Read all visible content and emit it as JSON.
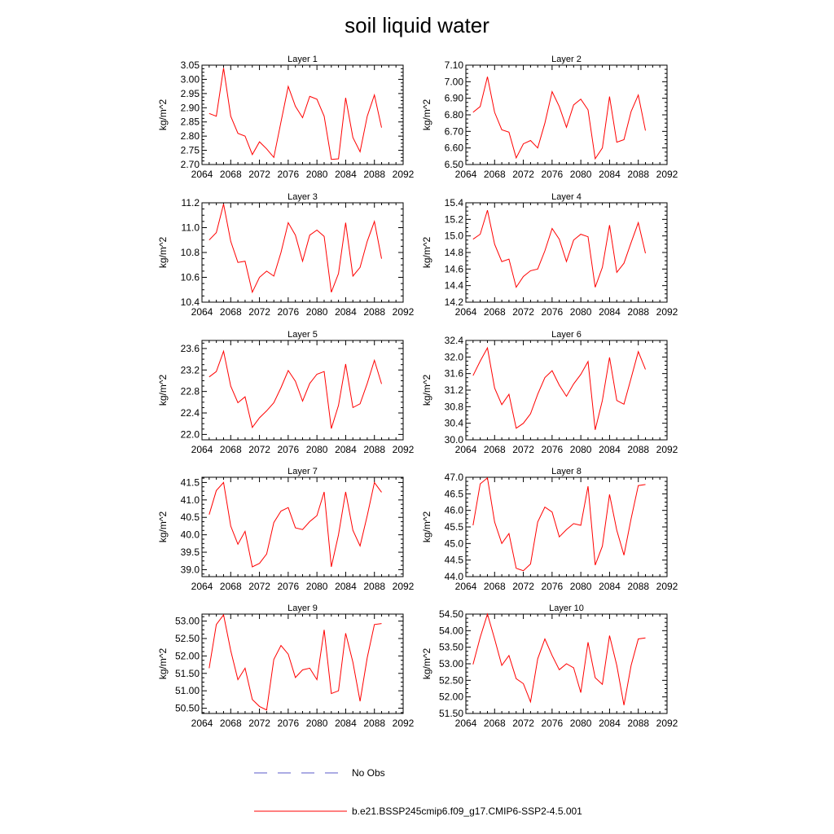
{
  "title": "soil liquid water",
  "legend": {
    "obs_label": "No Obs",
    "model_label": "b.e21.BSSP245cmip6.f09_g17.CMIP6-SSP2-4.5.001"
  },
  "colors": {
    "model": "#ff0000",
    "obs": "#5a5ac8",
    "axis": "#000000"
  },
  "chart_data": [
    {
      "type": "line",
      "title": "Layer 1",
      "ylabel": "kg/m^2",
      "xlim": [
        2064,
        2092
      ],
      "ylim": [
        2.7,
        3.05
      ],
      "xticks": [
        2064,
        2068,
        2072,
        2076,
        2080,
        2084,
        2088,
        2092
      ],
      "yticks": [
        2.7,
        2.75,
        2.8,
        2.85,
        2.9,
        2.95,
        3.0,
        3.05
      ],
      "ydec": 2,
      "x": [
        2065,
        2066,
        2067,
        2068,
        2069,
        2070,
        2071,
        2072,
        2073,
        2074,
        2075,
        2076,
        2077,
        2078,
        2079,
        2080,
        2081,
        2082,
        2083,
        2084,
        2085,
        2086,
        2087,
        2088,
        2089
      ],
      "y": [
        2.88,
        2.87,
        3.04,
        2.87,
        2.81,
        2.8,
        2.735,
        2.78,
        2.755,
        2.725,
        2.85,
        2.975,
        2.905,
        2.865,
        2.94,
        2.93,
        2.87,
        2.718,
        2.72,
        2.935,
        2.795,
        2.745,
        2.87,
        2.945,
        2.83
      ]
    },
    {
      "type": "line",
      "title": "Layer 2",
      "ylabel": "kg/m^2",
      "xlim": [
        2064,
        2092
      ],
      "ylim": [
        6.5,
        7.1
      ],
      "xticks": [
        2064,
        2068,
        2072,
        2076,
        2080,
        2084,
        2088,
        2092
      ],
      "yticks": [
        6.5,
        6.6,
        6.7,
        6.8,
        6.9,
        7.0,
        7.1
      ],
      "ydec": 2,
      "x": [
        2065,
        2066,
        2067,
        2068,
        2069,
        2070,
        2071,
        2072,
        2073,
        2074,
        2075,
        2076,
        2077,
        2078,
        2079,
        2080,
        2081,
        2082,
        2083,
        2084,
        2085,
        2086,
        2087,
        2088,
        2089
      ],
      "y": [
        6.815,
        6.85,
        7.03,
        6.815,
        6.71,
        6.695,
        6.54,
        6.625,
        6.645,
        6.6,
        6.75,
        6.94,
        6.85,
        6.725,
        6.86,
        6.895,
        6.83,
        6.535,
        6.6,
        6.91,
        6.635,
        6.65,
        6.82,
        6.92,
        6.705
      ]
    },
    {
      "type": "line",
      "title": "Layer 3",
      "ylabel": "kg/m^2",
      "xlim": [
        2064,
        2092
      ],
      "ylim": [
        10.4,
        11.2
      ],
      "xticks": [
        2064,
        2068,
        2072,
        2076,
        2080,
        2084,
        2088,
        2092
      ],
      "yticks": [
        10.4,
        10.6,
        10.8,
        11.0,
        11.2
      ],
      "ydec": 1,
      "x": [
        2065,
        2066,
        2067,
        2068,
        2069,
        2070,
        2071,
        2072,
        2073,
        2074,
        2075,
        2076,
        2077,
        2078,
        2079,
        2080,
        2081,
        2082,
        2083,
        2084,
        2085,
        2086,
        2087,
        2088,
        2089
      ],
      "y": [
        10.9,
        10.96,
        11.19,
        10.89,
        10.72,
        10.73,
        10.48,
        10.6,
        10.65,
        10.61,
        10.8,
        11.04,
        10.94,
        10.73,
        10.94,
        10.98,
        10.93,
        10.48,
        10.63,
        11.04,
        10.61,
        10.68,
        10.89,
        11.05,
        10.75
      ]
    },
    {
      "type": "line",
      "title": "Layer 4",
      "ylabel": "kg/m^2",
      "xlim": [
        2064,
        2092
      ],
      "ylim": [
        14.2,
        15.4
      ],
      "xticks": [
        2064,
        2068,
        2072,
        2076,
        2080,
        2084,
        2088,
        2092
      ],
      "yticks": [
        14.2,
        14.4,
        14.6,
        14.8,
        15.0,
        15.2,
        15.4
      ],
      "ydec": 1,
      "x": [
        2065,
        2066,
        2067,
        2068,
        2069,
        2070,
        2071,
        2072,
        2073,
        2074,
        2075,
        2076,
        2077,
        2078,
        2079,
        2080,
        2081,
        2082,
        2083,
        2084,
        2085,
        2086,
        2087,
        2088,
        2089
      ],
      "y": [
        14.96,
        15.02,
        15.31,
        14.9,
        14.69,
        14.72,
        14.38,
        14.51,
        14.58,
        14.6,
        14.82,
        15.09,
        14.96,
        14.69,
        14.95,
        15.02,
        14.99,
        14.38,
        14.62,
        15.13,
        14.56,
        14.67,
        14.92,
        15.16,
        14.79
      ]
    },
    {
      "type": "line",
      "title": "Layer 5",
      "ylabel": "kg/m^2",
      "xlim": [
        2064,
        2092
      ],
      "ylim": [
        21.9,
        23.75
      ],
      "xticks": [
        2064,
        2068,
        2072,
        2076,
        2080,
        2084,
        2088,
        2092
      ],
      "yticks": [
        22.0,
        22.4,
        22.8,
        23.2,
        23.6
      ],
      "ydec": 1,
      "x": [
        2065,
        2066,
        2067,
        2068,
        2069,
        2070,
        2071,
        2072,
        2073,
        2074,
        2075,
        2076,
        2077,
        2078,
        2079,
        2080,
        2081,
        2082,
        2083,
        2084,
        2085,
        2086,
        2087,
        2088,
        2089
      ],
      "y": [
        23.07,
        23.17,
        23.55,
        22.9,
        22.59,
        22.7,
        22.13,
        22.31,
        22.44,
        22.59,
        22.87,
        23.19,
        22.99,
        22.62,
        22.95,
        23.12,
        23.17,
        22.11,
        22.54,
        23.31,
        22.5,
        22.57,
        22.95,
        23.38,
        22.94
      ]
    },
    {
      "type": "line",
      "title": "Layer 6",
      "ylabel": "kg/m^2",
      "xlim": [
        2064,
        2092
      ],
      "ylim": [
        30.0,
        32.4
      ],
      "xticks": [
        2064,
        2068,
        2072,
        2076,
        2080,
        2084,
        2088,
        2092
      ],
      "yticks": [
        30.0,
        30.4,
        30.8,
        31.2,
        31.6,
        32.0,
        32.4
      ],
      "ydec": 1,
      "x": [
        2065,
        2066,
        2067,
        2068,
        2069,
        2070,
        2071,
        2072,
        2073,
        2074,
        2075,
        2076,
        2077,
        2078,
        2079,
        2080,
        2081,
        2082,
        2083,
        2084,
        2085,
        2086,
        2087,
        2088,
        2089
      ],
      "y": [
        31.55,
        31.9,
        32.22,
        31.25,
        30.85,
        31.1,
        30.28,
        30.4,
        30.63,
        31.1,
        31.5,
        31.67,
        31.32,
        31.05,
        31.35,
        31.58,
        31.89,
        30.24,
        30.95,
        31.99,
        30.95,
        30.86,
        31.49,
        32.13,
        31.7
      ]
    },
    {
      "type": "line",
      "title": "Layer 7",
      "ylabel": "kg/m^2",
      "xlim": [
        2064,
        2092
      ],
      "ylim": [
        38.8,
        41.65
      ],
      "xticks": [
        2064,
        2068,
        2072,
        2076,
        2080,
        2084,
        2088,
        2092
      ],
      "yticks": [
        39.0,
        39.5,
        40.0,
        40.5,
        41.0,
        41.5
      ],
      "ydec": 1,
      "x": [
        2065,
        2066,
        2067,
        2068,
        2069,
        2070,
        2071,
        2072,
        2073,
        2074,
        2075,
        2076,
        2077,
        2078,
        2079,
        2080,
        2081,
        2082,
        2083,
        2084,
        2085,
        2086,
        2087,
        2088,
        2089
      ],
      "y": [
        40.58,
        41.27,
        41.5,
        40.25,
        39.73,
        40.1,
        39.08,
        39.18,
        39.45,
        40.35,
        40.68,
        40.78,
        40.2,
        40.15,
        40.38,
        40.55,
        41.23,
        39.08,
        40.0,
        41.23,
        40.13,
        39.68,
        40.55,
        41.5,
        41.22
      ]
    },
    {
      "type": "line",
      "title": "Layer 8",
      "ylabel": "kg/m^2",
      "xlim": [
        2064,
        2092
      ],
      "ylim": [
        44.0,
        47.0
      ],
      "xticks": [
        2064,
        2068,
        2072,
        2076,
        2080,
        2084,
        2088,
        2092
      ],
      "yticks": [
        44.0,
        44.5,
        45.0,
        45.5,
        46.0,
        46.5,
        47.0
      ],
      "ydec": 1,
      "x": [
        2065,
        2066,
        2067,
        2068,
        2069,
        2070,
        2071,
        2072,
        2073,
        2074,
        2075,
        2076,
        2077,
        2078,
        2079,
        2080,
        2081,
        2082,
        2083,
        2084,
        2085,
        2086,
        2087,
        2088,
        2089
      ],
      "y": [
        45.55,
        46.8,
        46.98,
        45.65,
        45.0,
        45.3,
        44.25,
        44.18,
        44.38,
        45.65,
        46.1,
        45.95,
        45.2,
        45.42,
        45.6,
        45.55,
        46.73,
        44.35,
        44.92,
        46.48,
        45.4,
        44.65,
        45.75,
        46.75,
        46.78
      ]
    },
    {
      "type": "line",
      "title": "Layer 9",
      "ylabel": "kg/m^2",
      "xlim": [
        2064,
        2092
      ],
      "ylim": [
        50.35,
        53.2
      ],
      "xticks": [
        2064,
        2068,
        2072,
        2076,
        2080,
        2084,
        2088,
        2092
      ],
      "yticks": [
        50.5,
        51.0,
        51.5,
        52.0,
        52.5,
        53.0
      ],
      "ydec": 2,
      "x": [
        2065,
        2066,
        2067,
        2068,
        2069,
        2070,
        2071,
        2072,
        2073,
        2074,
        2075,
        2076,
        2077,
        2078,
        2079,
        2080,
        2081,
        2082,
        2083,
        2084,
        2085,
        2086,
        2087,
        2088,
        2089
      ],
      "y": [
        51.65,
        52.9,
        53.18,
        52.15,
        51.32,
        51.65,
        50.75,
        50.55,
        50.45,
        51.9,
        52.3,
        52.05,
        51.38,
        51.6,
        51.65,
        51.32,
        52.75,
        50.92,
        51.0,
        52.65,
        51.82,
        50.7,
        51.95,
        52.9,
        52.93
      ]
    },
    {
      "type": "line",
      "title": "Layer 10",
      "ylabel": "kg/m^2",
      "xlim": [
        2064,
        2092
      ],
      "ylim": [
        51.5,
        54.5
      ],
      "xticks": [
        2064,
        2068,
        2072,
        2076,
        2080,
        2084,
        2088,
        2092
      ],
      "yticks": [
        51.5,
        52.0,
        52.5,
        53.0,
        53.5,
        54.0,
        54.5
      ],
      "ydec": 2,
      "x": [
        2065,
        2066,
        2067,
        2068,
        2069,
        2070,
        2071,
        2072,
        2073,
        2074,
        2075,
        2076,
        2077,
        2078,
        2079,
        2080,
        2081,
        2082,
        2083,
        2084,
        2085,
        2086,
        2087,
        2088,
        2089
      ],
      "y": [
        52.98,
        53.8,
        54.5,
        53.75,
        52.95,
        53.25,
        52.55,
        52.4,
        51.85,
        53.15,
        53.75,
        53.25,
        52.82,
        53.0,
        52.88,
        52.13,
        53.65,
        52.58,
        52.38,
        53.85,
        52.95,
        51.75,
        52.95,
        53.75,
        53.78
      ]
    }
  ]
}
